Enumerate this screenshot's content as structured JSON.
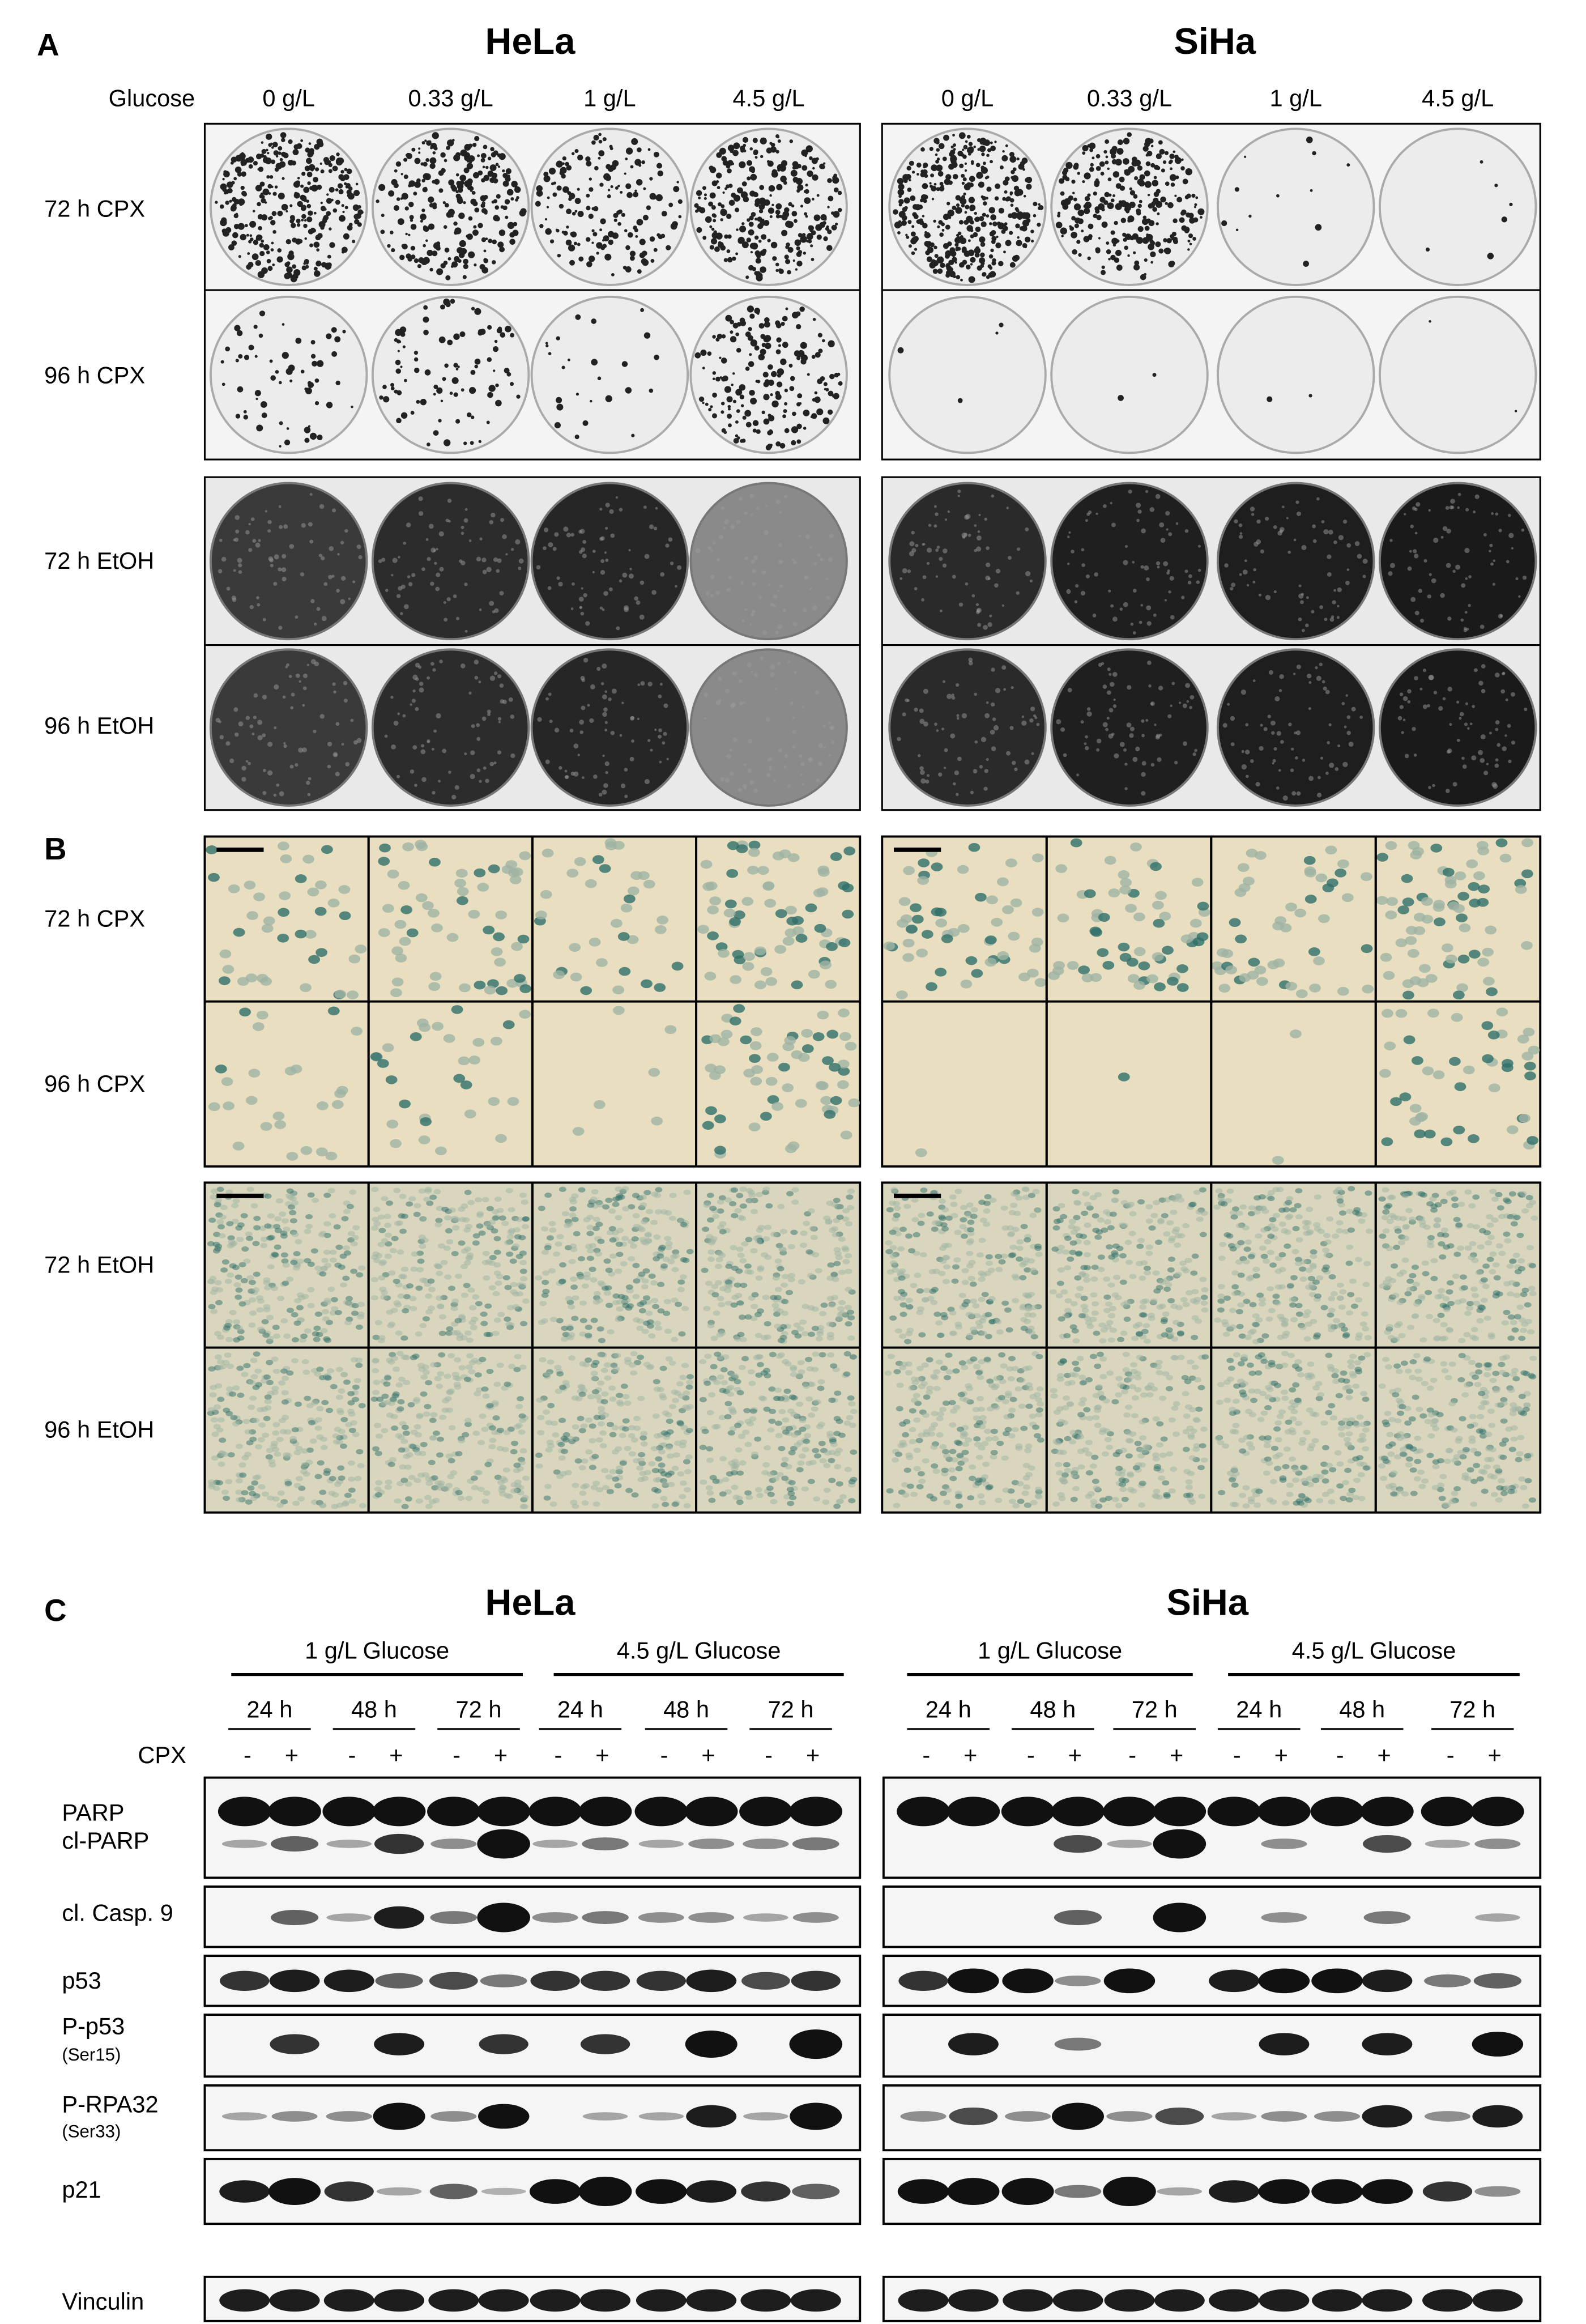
{
  "panel_a": {
    "label": "A",
    "glucose_label": "Glucose",
    "cell_lines": [
      {
        "title": "HeLa",
        "glucose": [
          "0 g/L",
          "0.33 g/L",
          "1 g/L",
          "4.5 g/L"
        ]
      },
      {
        "title": "SiHa",
        "glucose": [
          "0 g/L",
          "0.33 g/L",
          "1 g/L",
          "4.5 g/L"
        ]
      }
    ],
    "rows": [
      "72 h CPX",
      "96 h CPX",
      "72 h EtOH",
      "96 h EtOH"
    ]
  },
  "panel_b": {
    "label": "B",
    "rows": [
      "72 h CPX",
      "96 h CPX",
      "72 h EtOH",
      "96 h EtOH"
    ]
  },
  "panel_c": {
    "label": "C",
    "cpx_label": "CPX",
    "cell_lines": [
      {
        "title": "HeLa",
        "conditions": [
          {
            "label": "1 g/L Glucose",
            "times": [
              {
                "label": "24 h",
                "cpx": [
                  "-",
                  "+"
                ]
              },
              {
                "label": "48 h",
                "cpx": [
                  "-",
                  "+"
                ]
              },
              {
                "label": "72 h",
                "cpx": [
                  "-",
                  "+"
                ]
              }
            ]
          },
          {
            "label": "4.5 g/L Glucose",
            "times": [
              {
                "label": "24 h",
                "cpx": [
                  "-",
                  "+"
                ]
              },
              {
                "label": "48 h",
                "cpx": [
                  "-",
                  "+"
                ]
              },
              {
                "label": "72 h",
                "cpx": [
                  "-",
                  "+"
                ]
              }
            ]
          }
        ]
      },
      {
        "title": "SiHa",
        "conditions": [
          {
            "label": "1 g/L Glucose",
            "times": [
              {
                "label": "24 h",
                "cpx": [
                  "-",
                  "+"
                ]
              },
              {
                "label": "48 h",
                "cpx": [
                  "-",
                  "+"
                ]
              },
              {
                "label": "72 h",
                "cpx": [
                  "-",
                  "+"
                ]
              }
            ]
          },
          {
            "label": "4.5 g/L Glucose",
            "times": [
              {
                "label": "24 h",
                "cpx": [
                  "-",
                  "+"
                ]
              },
              {
                "label": "48 h",
                "cpx": [
                  "-",
                  "+"
                ]
              },
              {
                "label": "72 h",
                "cpx": [
                  "-",
                  "+"
                ]
              }
            ]
          }
        ]
      }
    ],
    "proteins": [
      {
        "label": "PARP"
      },
      {
        "label": "cl-PARP"
      },
      {
        "label": "cl. Casp. 9"
      },
      {
        "label": "p53"
      },
      {
        "label": "P-p53",
        "site": "(Ser15)"
      },
      {
        "label": "P-RPA32",
        "site": "(Ser33)"
      },
      {
        "label": "p21"
      },
      {
        "label": "Vinculin"
      }
    ]
  }
}
